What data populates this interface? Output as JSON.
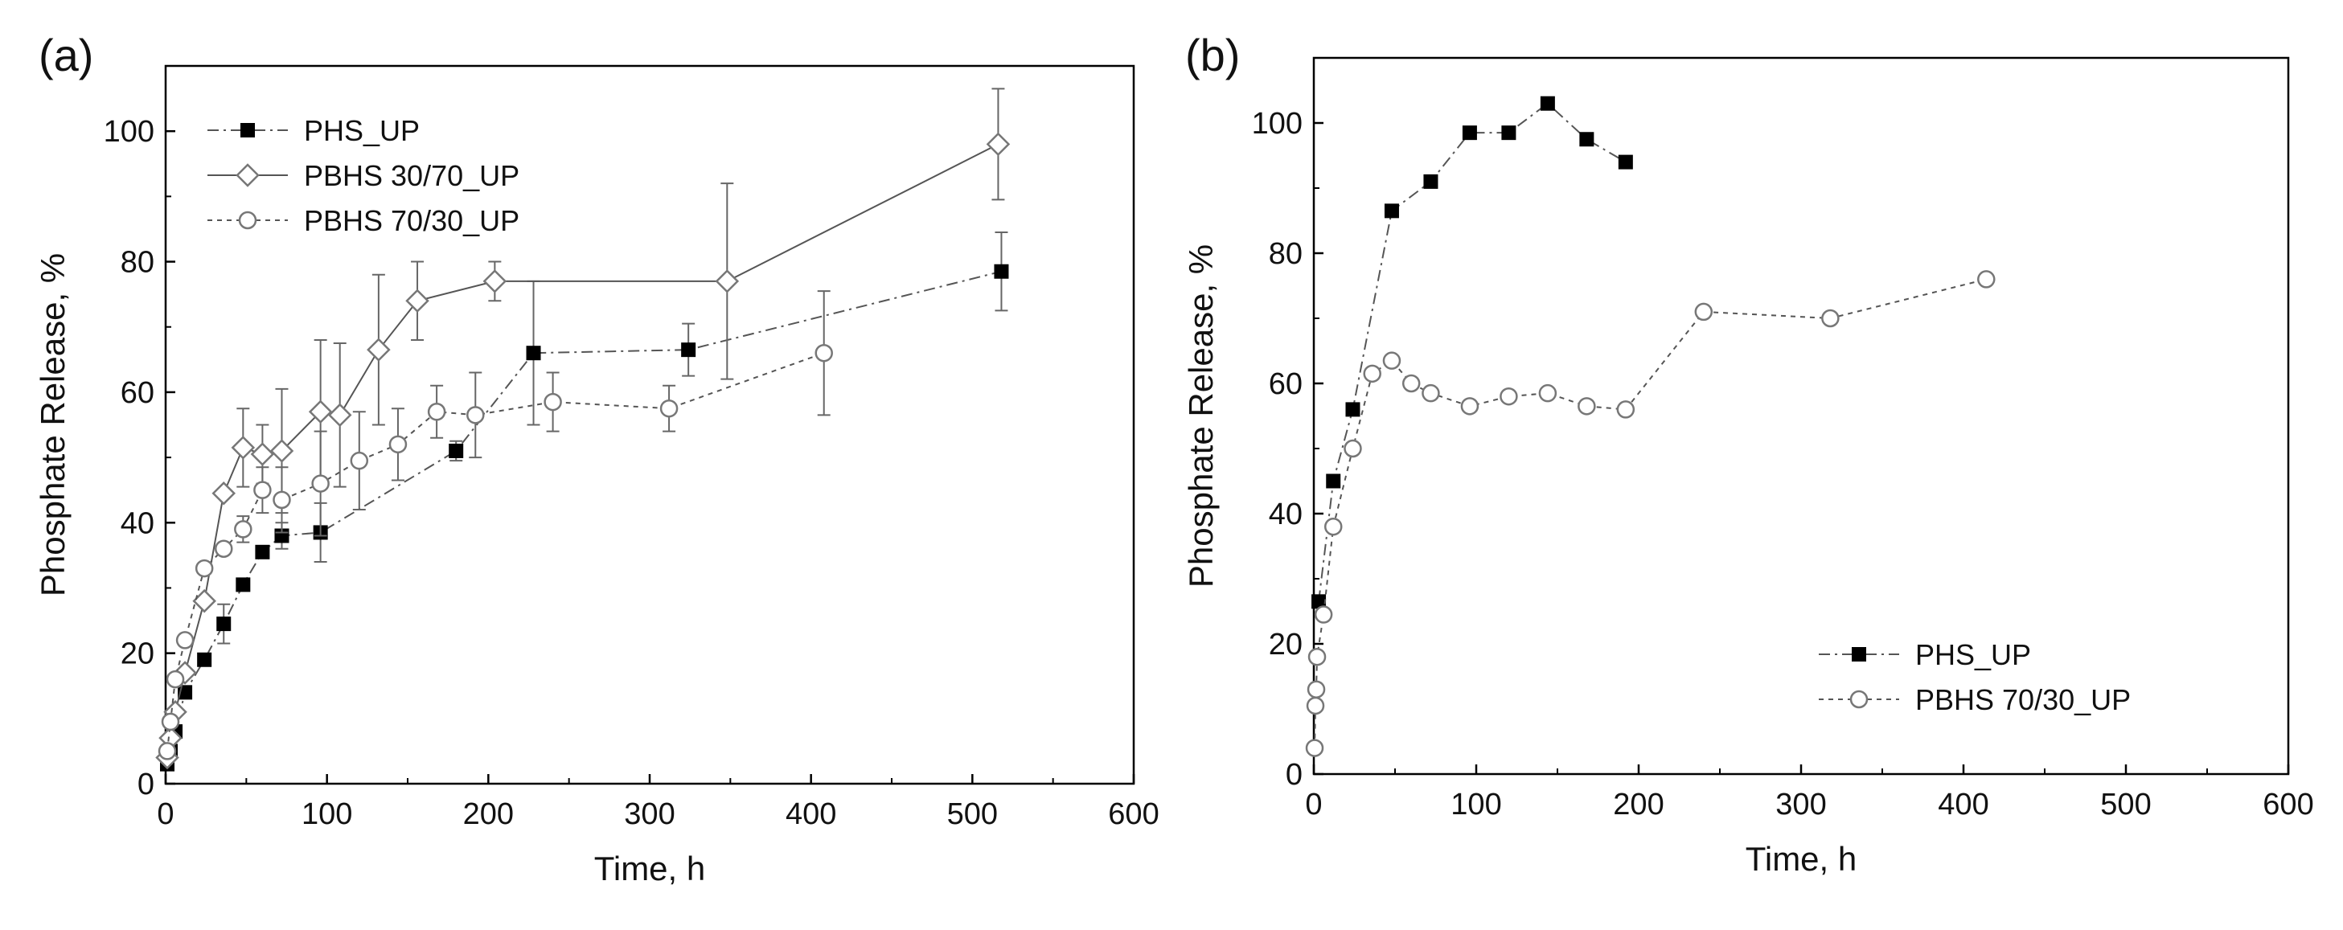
{
  "chart_data": [
    {
      "panel_label": "(a)",
      "type": "line",
      "xlabel": "Time, h",
      "ylabel": "Phosphate Release, %",
      "xlim": [
        0,
        600
      ],
      "ylim": [
        0,
        110
      ],
      "xticks": [
        0,
        100,
        200,
        300,
        400,
        500,
        600
      ],
      "yticks": [
        0,
        20,
        40,
        60,
        80,
        100
      ],
      "legend_position": "top-left",
      "series": [
        {
          "name": "PHS_UP",
          "marker": "filled-square",
          "line": "dash-dot",
          "x": [
            1,
            3,
            6,
            12,
            24,
            36,
            48,
            60,
            72,
            96,
            180,
            228,
            324,
            518
          ],
          "y": [
            3,
            5,
            8,
            14,
            19,
            24.5,
            30.5,
            35.5,
            38,
            38.5,
            51,
            66,
            66.5,
            78.5
          ],
          "error": [
            0,
            0,
            0,
            0,
            0,
            3,
            0,
            0,
            2,
            4.5,
            1.5,
            11,
            4,
            6
          ]
        },
        {
          "name": "PBHS 30/70_UP",
          "marker": "open-diamond",
          "line": "solid",
          "x": [
            1,
            3,
            6,
            12,
            24,
            36,
            48,
            60,
            72,
            96,
            108,
            132,
            156,
            204,
            348,
            516
          ],
          "y": [
            4,
            7,
            11,
            17,
            28,
            44.5,
            51.5,
            50.5,
            51,
            57,
            56.5,
            66.5,
            74,
            77,
            77,
            98
          ],
          "error": [
            0,
            0,
            0,
            0,
            0,
            0,
            6,
            4.5,
            9.5,
            11,
            11,
            11.5,
            6,
            3,
            15,
            8.5
          ]
        },
        {
          "name": "PBHS 70/30_UP",
          "marker": "open-circle",
          "line": "dotted",
          "x": [
            1,
            3,
            6,
            12,
            24,
            36,
            48,
            60,
            72,
            96,
            120,
            144,
            168,
            192,
            240,
            312,
            408
          ],
          "y": [
            5,
            9.5,
            16,
            22,
            33,
            36,
            39,
            45,
            43.5,
            46,
            49.5,
            52,
            57,
            56.5,
            58.5,
            57.5,
            66
          ],
          "error": [
            0,
            0,
            0,
            0,
            0,
            0,
            2,
            3.5,
            5,
            8,
            7.5,
            5.5,
            4,
            6.5,
            4.5,
            3.5,
            9.5
          ]
        }
      ]
    },
    {
      "panel_label": "(b)",
      "type": "line",
      "xlabel": "Time, h",
      "ylabel": "Phosphate Release, %",
      "xlim": [
        0,
        600
      ],
      "ylim": [
        0,
        110
      ],
      "xticks": [
        0,
        100,
        200,
        300,
        400,
        500,
        600
      ],
      "yticks": [
        0,
        20,
        40,
        60,
        80,
        100
      ],
      "legend_position": "bottom-right",
      "series": [
        {
          "name": "PHS_UP",
          "marker": "filled-square",
          "line": "dash-dot",
          "x": [
            3,
            12,
            24,
            48,
            72,
            96,
            120,
            144,
            168,
            192
          ],
          "y": [
            26.5,
            45,
            56,
            86.5,
            91,
            98.5,
            98.5,
            103,
            97.5,
            94
          ]
        },
        {
          "name": "PBHS 70/30_UP",
          "marker": "open-circle",
          "line": "dotted",
          "x": [
            0.5,
            1,
            1.5,
            2,
            6,
            12,
            24,
            36,
            48,
            60,
            72,
            96,
            120,
            144,
            168,
            192,
            240,
            318,
            414
          ],
          "y": [
            4,
            10.5,
            13,
            18,
            24.5,
            38,
            50,
            61.5,
            63.5,
            60,
            58.5,
            56.5,
            58,
            58.5,
            56.5,
            56,
            71,
            70,
            76
          ]
        }
      ]
    }
  ]
}
